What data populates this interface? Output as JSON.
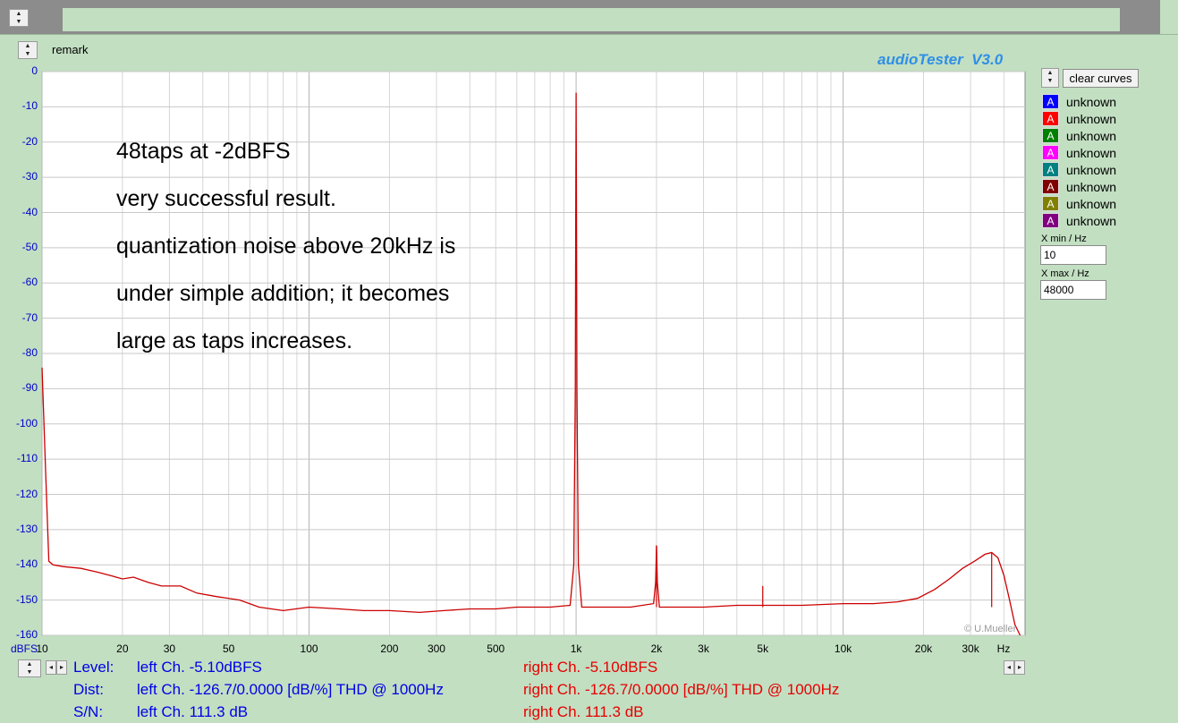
{
  "window": {
    "remark_label": "remark",
    "brand": "audioTester  V3.0",
    "clear_label": "clear curves"
  },
  "legend": [
    {
      "icon": "A",
      "label": "unknown",
      "color": "#0000ff"
    },
    {
      "icon": "A",
      "label": "unknown",
      "color": "#ff0000"
    },
    {
      "icon": "A",
      "label": "unknown",
      "color": "#008000"
    },
    {
      "icon": "A",
      "label": "unknown",
      "color": "#ff00ff"
    },
    {
      "icon": "A",
      "label": "unknown",
      "color": "#008080"
    },
    {
      "icon": "A",
      "label": "unknown",
      "color": "#800000"
    },
    {
      "icon": "A",
      "label": "unknown",
      "color": "#808000"
    },
    {
      "icon": "A",
      "label": "unknown",
      "color": "#800080"
    }
  ],
  "xrange": {
    "min_label": "X min / Hz",
    "min_value": "10",
    "max_label": "X max / Hz",
    "max_value": "48000"
  },
  "notes": [
    "48taps at -2dBFS",
    "very successful result.",
    "quantization noise above 20kHz is",
    "under simple addition; it becomes",
    "large as taps increases."
  ],
  "copyright": "© U.Mueller",
  "stats": {
    "level_label": "Level:",
    "level_left": "left Ch. -5.10dBFS",
    "level_right": "right Ch. -5.10dBFS",
    "dist_label": "Dist:",
    "dist_left": "left Ch. -126.7/0.0000 [dB/%] THD @ 1000Hz",
    "dist_right": "right Ch. -126.7/0.0000 [dB/%] THD @ 1000Hz",
    "sn_label": "S/N:",
    "sn_left": "left Ch. 111.3 dB",
    "sn_right": "right Ch. 111.3 dB"
  },
  "chart_data": {
    "type": "line",
    "xscale": "log",
    "xlim": [
      10,
      48000
    ],
    "ylim": [
      -160,
      0
    ],
    "ylabel": "dBFS",
    "xlabel": "Hz",
    "grid": true,
    "xtick_labels": [
      {
        "v": 10,
        "t": "10"
      },
      {
        "v": 20,
        "t": "20"
      },
      {
        "v": 30,
        "t": "30"
      },
      {
        "v": 50,
        "t": "50"
      },
      {
        "v": 100,
        "t": "100"
      },
      {
        "v": 200,
        "t": "200"
      },
      {
        "v": 300,
        "t": "300"
      },
      {
        "v": 500,
        "t": "500"
      },
      {
        "v": 1000,
        "t": "1k"
      },
      {
        "v": 2000,
        "t": "2k"
      },
      {
        "v": 3000,
        "t": "3k"
      },
      {
        "v": 5000,
        "t": "5k"
      },
      {
        "v": 10000,
        "t": "10k"
      },
      {
        "v": 20000,
        "t": "20k"
      },
      {
        "v": 30000,
        "t": "30k"
      }
    ],
    "ytick_labels": [
      "0",
      "-10",
      "-20",
      "-30",
      "-40",
      "-50",
      "-60",
      "-70",
      "-80",
      "-90",
      "-100",
      "-110",
      "-120",
      "-130",
      "-140",
      "-150",
      "-160"
    ],
    "ytick_values": [
      0,
      -10,
      -20,
      -30,
      -40,
      -50,
      -60,
      -70,
      -80,
      -90,
      -100,
      -110,
      -120,
      -130,
      -140,
      -150,
      -160
    ],
    "series": [
      {
        "color": "#cc0000",
        "points": [
          [
            10,
            -84
          ],
          [
            10.3,
            -112
          ],
          [
            10.6,
            -139
          ],
          [
            11,
            -140
          ],
          [
            12,
            -140.5
          ],
          [
            14,
            -141
          ],
          [
            16,
            -142
          ],
          [
            18,
            -143
          ],
          [
            20,
            -144
          ],
          [
            22,
            -143.5
          ],
          [
            25,
            -145
          ],
          [
            28,
            -146
          ],
          [
            33,
            -146
          ],
          [
            38,
            -148
          ],
          [
            45,
            -149
          ],
          [
            55,
            -150
          ],
          [
            65,
            -152
          ],
          [
            80,
            -153
          ],
          [
            100,
            -152
          ],
          [
            130,
            -152.5
          ],
          [
            160,
            -153
          ],
          [
            200,
            -153
          ],
          [
            260,
            -153.5
          ],
          [
            320,
            -153
          ],
          [
            400,
            -152.5
          ],
          [
            500,
            -152.5
          ],
          [
            600,
            -152
          ],
          [
            800,
            -152
          ],
          [
            950,
            -151.5
          ],
          [
            980,
            -140
          ],
          [
            993,
            -90
          ],
          [
            997,
            -40
          ],
          [
            1000,
            -6
          ],
          [
            1003,
            -40
          ],
          [
            1007,
            -90
          ],
          [
            1020,
            -140
          ],
          [
            1050,
            -152
          ],
          [
            1300,
            -152
          ],
          [
            1600,
            -152
          ],
          [
            1950,
            -151
          ],
          [
            1985,
            -145
          ],
          [
            2000,
            -134.5
          ],
          [
            2015,
            -145
          ],
          [
            2050,
            -152
          ],
          [
            2500,
            -152
          ],
          [
            3000,
            -152
          ],
          [
            4000,
            -151.5
          ],
          [
            5000,
            -151.5
          ],
          [
            7000,
            -151.5
          ],
          [
            10000,
            -151
          ],
          [
            13000,
            -151
          ],
          [
            16000,
            -150.5
          ],
          [
            19000,
            -149.5
          ],
          [
            22000,
            -147
          ],
          [
            25000,
            -144
          ],
          [
            28000,
            -141
          ],
          [
            31000,
            -139
          ],
          [
            34000,
            -137
          ],
          [
            36000,
            -136.5
          ],
          [
            38000,
            -138
          ],
          [
            40000,
            -143
          ],
          [
            42000,
            -150
          ],
          [
            44000,
            -157
          ],
          [
            46000,
            -160
          ]
        ]
      }
    ],
    "annotations": [
      {
        "f": 2000,
        "db": -134.5
      },
      {
        "f": 5000,
        "db": -146
      },
      {
        "f": 36000,
        "db": -136.5
      }
    ]
  }
}
